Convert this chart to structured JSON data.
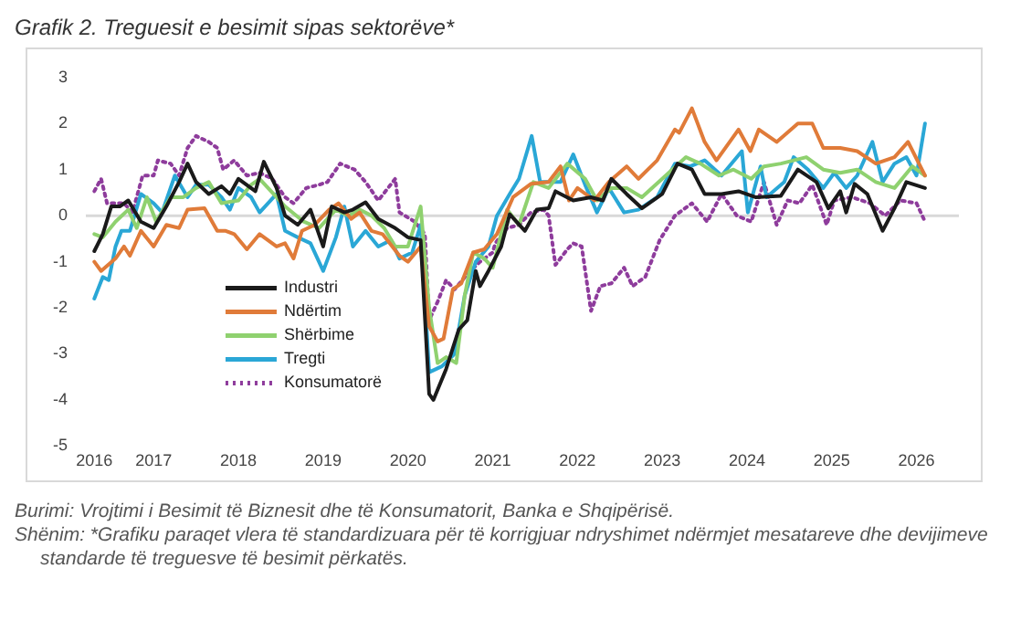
{
  "chart_data": {
    "type": "line",
    "title": "Grafik 2. Treguesit e besimit sipas sektorëve*",
    "annotations": [
      "Burimi: Vrojtimi i Besimit të Biznesit dhe të Konsumatorit, Banka e Shqipërisë.",
      "Shënim: *Grafiku paraqet vlera të standardizuara për të korrigjuar ndryshimet ndërmjet mesatareve dhe devijimeve standarde të treguesve të besimit përkatës."
    ],
    "xlim": [
      2016.2,
      2026.5
    ],
    "xticks": [
      {
        "value": 2016.3,
        "label": "2016"
      },
      2017,
      2018,
      2019,
      2020,
      2021,
      2022,
      2023,
      2024,
      2025,
      2026
    ],
    "ylim": [
      -5,
      3
    ],
    "yticks": [
      -5,
      -4,
      -3,
      -2,
      -1,
      0,
      1,
      2,
      3
    ],
    "grid": false,
    "legend": "bottom left",
    "marker": "none",
    "ref_lines": [
      {
        "axis": "y",
        "value": 0,
        "color": "#d9d9d9"
      }
    ],
    "series": [
      {
        "name": "Industri",
        "color": "#1a1a1a",
        "line_style": "solid",
        "x": [
          2016.3,
          2016.4,
          2016.5,
          2016.6,
          2016.7,
          2016.85,
          2017.0,
          2017.15,
          2017.3,
          2017.4,
          2017.5,
          2017.65,
          2017.8,
          2017.9,
          2018.0,
          2018.2,
          2018.3,
          2018.45,
          2018.55,
          2018.7,
          2018.85,
          2019.0,
          2019.1,
          2019.25,
          2019.35,
          2019.5,
          2019.65,
          2019.85,
          2020.0,
          2020.15,
          2020.25,
          2020.3,
          2020.45,
          2020.6,
          2020.7,
          2020.8,
          2020.85,
          2020.95,
          2021.1,
          2021.2,
          2021.38,
          2021.52,
          2021.66,
          2021.74,
          2021.95,
          2022.16,
          2022.3,
          2022.4,
          2022.58,
          2022.76,
          2023.0,
          2023.18,
          2023.35,
          2023.5,
          2023.7,
          2023.9,
          2024.1,
          2024.4,
          2024.6,
          2024.82,
          2024.96,
          2025.1,
          2025.17,
          2025.27,
          2025.42,
          2025.6,
          2025.74,
          2025.88,
          2026.1
        ],
        "values": [
          -0.77,
          -0.4,
          0.2,
          0.2,
          0.33,
          -0.13,
          -0.27,
          0.2,
          0.73,
          1.13,
          0.73,
          0.47,
          0.64,
          0.47,
          0.8,
          0.53,
          1.17,
          0.6,
          0,
          -0.2,
          0.13,
          -0.67,
          0.2,
          0.07,
          0.13,
          0.29,
          -0.07,
          -0.27,
          -0.47,
          -0.53,
          -3.87,
          -4.0,
          -3.33,
          -2.47,
          -2.27,
          -1.2,
          -1.53,
          -1.2,
          -0.67,
          0.03,
          -0.33,
          0.13,
          0.16,
          0.53,
          0.33,
          0.4,
          0.33,
          0.8,
          0.47,
          0.16,
          0.47,
          1.13,
          1.0,
          0.47,
          0.47,
          0.53,
          0.4,
          0.43,
          1.0,
          0.73,
          0.16,
          0.53,
          0.07,
          0.69,
          0.47,
          -0.33,
          0.16,
          0.73,
          0.6
        ]
      },
      {
        "name": "Ndërtim",
        "color": "#e07b39",
        "line_style": "solid",
        "x": [
          2016.3,
          2016.38,
          2016.55,
          2016.65,
          2016.72,
          2016.85,
          2017.0,
          2017.15,
          2017.3,
          2017.4,
          2017.6,
          2017.75,
          2017.85,
          2017.95,
          2018.1,
          2018.25,
          2018.45,
          2018.55,
          2018.65,
          2018.75,
          2018.9,
          2019.07,
          2019.18,
          2019.33,
          2019.43,
          2019.57,
          2019.7,
          2019.9,
          2020.0,
          2020.15,
          2020.25,
          2020.35,
          2020.42,
          2020.53,
          2020.63,
          2020.77,
          2020.9,
          2021.05,
          2021.24,
          2021.45,
          2021.66,
          2021.8,
          2021.9,
          2022.0,
          2022.2,
          2022.37,
          2022.58,
          2022.72,
          2022.94,
          2023.15,
          2023.2,
          2023.35,
          2023.5,
          2023.64,
          2023.9,
          2024.04,
          2024.14,
          2024.35,
          2024.6,
          2024.77,
          2024.9,
          2025.1,
          2025.3,
          2025.52,
          2025.74,
          2025.9,
          2026.1
        ],
        "values": [
          -1.0,
          -1.2,
          -0.93,
          -0.67,
          -0.87,
          -0.33,
          -0.67,
          -0.2,
          -0.27,
          0.13,
          0.16,
          -0.33,
          -0.33,
          -0.4,
          -0.73,
          -0.4,
          -0.67,
          -0.6,
          -0.93,
          -0.33,
          -0.2,
          0.13,
          0.27,
          -0.07,
          0.07,
          -0.33,
          -0.4,
          -0.87,
          -1.0,
          -0.67,
          -2.4,
          -2.73,
          -2.67,
          -1.6,
          -1.47,
          -0.8,
          -0.73,
          -0.4,
          0.4,
          0.69,
          0.73,
          1.07,
          0.33,
          0.6,
          0.33,
          0.73,
          1.07,
          0.8,
          1.2,
          1.87,
          1.8,
          2.33,
          1.6,
          1.2,
          1.87,
          1.4,
          1.87,
          1.6,
          2.0,
          2.0,
          1.47,
          1.47,
          1.4,
          1.13,
          1.27,
          1.6,
          0.87
        ]
      },
      {
        "name": "Shërbime",
        "color": "#8fd16f",
        "line_style": "solid",
        "x": [
          2016.3,
          2016.4,
          2016.55,
          2016.7,
          2016.8,
          2016.92,
          2017.03,
          2017.2,
          2017.35,
          2017.5,
          2017.65,
          2017.8,
          2018.0,
          2018.15,
          2018.25,
          2018.45,
          2018.55,
          2018.77,
          2018.95,
          2019.15,
          2019.3,
          2019.43,
          2019.57,
          2019.72,
          2019.85,
          2020.0,
          2020.15,
          2020.25,
          2020.35,
          2020.45,
          2020.57,
          2020.67,
          2020.77,
          2020.9,
          2021.0,
          2021.17,
          2021.31,
          2021.48,
          2021.66,
          2021.88,
          2022.09,
          2022.23,
          2022.4,
          2022.58,
          2022.76,
          2023.0,
          2023.28,
          2023.45,
          2023.67,
          2023.84,
          2024.05,
          2024.2,
          2024.4,
          2024.7,
          2024.9,
          2025.1,
          2025.3,
          2025.52,
          2025.74,
          2025.95,
          2026.1
        ],
        "values": [
          -0.4,
          -0.47,
          -0.13,
          0.13,
          -0.27,
          0.4,
          -0.13,
          0.4,
          0.4,
          0.6,
          0.73,
          0.27,
          0.33,
          0.67,
          0.8,
          0.4,
          0.2,
          -0.13,
          -0.27,
          0.13,
          0,
          0.13,
          0,
          -0.27,
          -0.67,
          -0.67,
          0.2,
          -2.0,
          -3.2,
          -3.07,
          -3.2,
          -1.73,
          -0.8,
          -0.93,
          -1.13,
          0.13,
          -0.2,
          0.73,
          0.6,
          1.13,
          0.8,
          0.33,
          0.6,
          0.6,
          0.4,
          0.8,
          1.27,
          1.13,
          0.87,
          1.0,
          0.8,
          1.07,
          1.13,
          1.27,
          1.0,
          0.93,
          1.0,
          0.73,
          0.6,
          1.07,
          0.87
        ]
      },
      {
        "name": "Tregti",
        "color": "#2aa7d6",
        "line_style": "solid",
        "x": [
          2016.3,
          2016.4,
          2016.47,
          2016.55,
          2016.62,
          2016.72,
          2016.85,
          2017.0,
          2017.1,
          2017.25,
          2017.4,
          2017.5,
          2017.65,
          2017.8,
          2017.9,
          2018.0,
          2018.15,
          2018.25,
          2018.45,
          2018.55,
          2018.7,
          2018.85,
          2019.0,
          2019.15,
          2019.25,
          2019.35,
          2019.5,
          2019.65,
          2019.8,
          2019.9,
          2020.05,
          2020.15,
          2020.25,
          2020.4,
          2020.55,
          2020.67,
          2020.8,
          2020.95,
          2021.05,
          2021.2,
          2021.31,
          2021.46,
          2021.56,
          2021.8,
          2021.95,
          2022.09,
          2022.23,
          2022.37,
          2022.55,
          2022.72,
          2022.94,
          2023.15,
          2023.33,
          2023.5,
          2023.7,
          2023.94,
          2024.01,
          2024.16,
          2024.23,
          2024.44,
          2024.55,
          2024.72,
          2024.9,
          2025.03,
          2025.17,
          2025.3,
          2025.48,
          2025.6,
          2025.74,
          2025.88,
          2026.0,
          2026.1
        ],
        "values": [
          -1.8,
          -1.33,
          -1.4,
          -0.67,
          -0.33,
          -0.33,
          0.47,
          0.27,
          0.07,
          0.87,
          0.4,
          0.67,
          0.67,
          0.4,
          0.13,
          0.6,
          0.4,
          0.07,
          0.47,
          -0.33,
          -0.47,
          -0.6,
          -1.2,
          -0.47,
          0.2,
          -0.67,
          -0.33,
          -0.67,
          -0.53,
          -0.93,
          -0.8,
          -0.2,
          -3.4,
          -3.27,
          -3.0,
          -1.73,
          -1.0,
          -0.67,
          0,
          0.47,
          0.8,
          1.73,
          0.73,
          0.73,
          1.33,
          0.67,
          0.07,
          0.6,
          0.07,
          0.13,
          0.4,
          1.13,
          1.07,
          1.2,
          0.87,
          1.4,
          0.07,
          1.07,
          0.4,
          0.73,
          1.27,
          1.0,
          0.6,
          0.93,
          0.6,
          0.87,
          1.6,
          0.73,
          1.13,
          1.27,
          0.87,
          2.0
        ]
      },
      {
        "name": "Konsumatorë",
        "color": "#8e3c9c",
        "line_style": "dotted",
        "x": [
          2016.3,
          2016.38,
          2016.45,
          2016.55,
          2016.65,
          2016.75,
          2016.87,
          2017.0,
          2017.05,
          2017.2,
          2017.3,
          2017.4,
          2017.5,
          2017.65,
          2017.75,
          2017.82,
          2017.95,
          2018.1,
          2018.25,
          2018.4,
          2018.55,
          2018.65,
          2018.8,
          2018.95,
          2019.05,
          2019.2,
          2019.37,
          2019.5,
          2019.65,
          2019.85,
          2019.9,
          2020.08,
          2020.2,
          2020.25,
          2020.35,
          2020.45,
          2020.55,
          2020.7,
          2020.85,
          2021.0,
          2021.03,
          2021.17,
          2021.31,
          2021.45,
          2021.6,
          2021.66,
          2021.74,
          2021.88,
          2021.95,
          2022.05,
          2022.16,
          2022.27,
          2022.4,
          2022.55,
          2022.65,
          2022.8,
          2022.97,
          2023.15,
          2023.35,
          2023.53,
          2023.7,
          2023.88,
          2024.05,
          2024.2,
          2024.35,
          2024.48,
          2024.62,
          2024.77,
          2024.94,
          2025.03,
          2025.24,
          2025.45,
          2025.63,
          2025.81,
          2026.0,
          2026.1
        ],
        "values": [
          0.53,
          0.8,
          0.27,
          0.27,
          0.27,
          0.07,
          0.87,
          0.87,
          1.2,
          1.13,
          0.87,
          1.47,
          1.73,
          1.6,
          1.47,
          1.0,
          1.2,
          0.87,
          0.93,
          0.8,
          0.4,
          0.27,
          0.6,
          0.67,
          0.73,
          1.13,
          1.0,
          0.73,
          0.33,
          0.8,
          0.07,
          -0.13,
          -0.4,
          -2.27,
          -1.87,
          -1.4,
          -1.6,
          -1.27,
          -1.0,
          -0.8,
          -0.6,
          -0.27,
          -0.2,
          0.07,
          0.13,
          0,
          -1.07,
          -0.73,
          -0.6,
          -0.67,
          -2.07,
          -1.53,
          -1.47,
          -1.13,
          -1.53,
          -1.33,
          -0.53,
          0,
          0.27,
          -0.13,
          0.47,
          0,
          -0.13,
          0.73,
          -0.2,
          0.33,
          0.27,
          0.67,
          -0.2,
          0.33,
          0.4,
          0.27,
          0,
          0.33,
          0.27,
          -0.13
        ]
      }
    ]
  }
}
